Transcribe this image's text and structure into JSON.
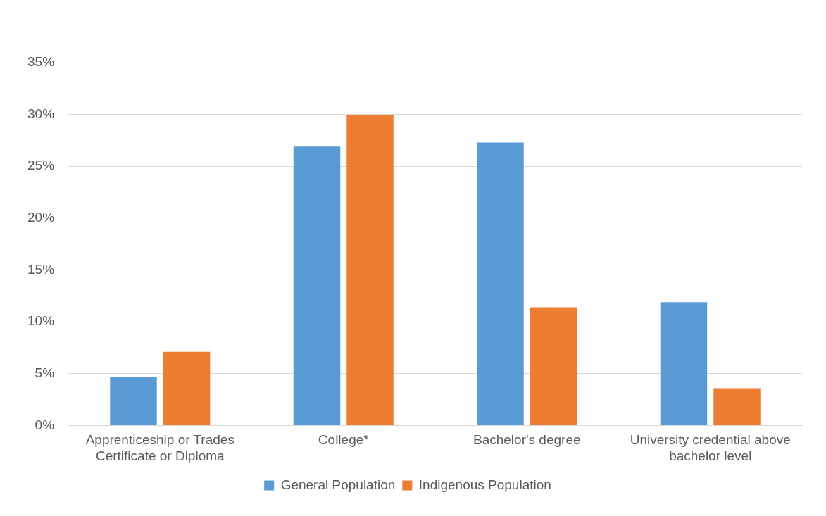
{
  "chart_data": {
    "type": "bar",
    "categories": [
      "Apprenticeship or Trades Certificate or Diploma",
      "College*",
      "Bachelor's degree",
      "University credential above bachelor level"
    ],
    "series": [
      {
        "name": "General Population",
        "color": "#5b9bd5",
        "values": [
          4.7,
          26.9,
          27.3,
          11.9
        ]
      },
      {
        "name": "Indigenous Population",
        "color": "#ed7d31",
        "values": [
          7.1,
          29.9,
          11.4,
          3.6
        ]
      }
    ],
    "ylim": [
      0,
      35
    ],
    "yticks": [
      {
        "value": 0,
        "label": "0%"
      },
      {
        "value": 5,
        "label": "5%"
      },
      {
        "value": 10,
        "label": "10%"
      },
      {
        "value": 15,
        "label": "15%"
      },
      {
        "value": 20,
        "label": "20%"
      },
      {
        "value": 25,
        "label": "25%"
      },
      {
        "value": 30,
        "label": "30%"
      },
      {
        "value": 35,
        "label": "35%"
      }
    ],
    "grid": "y",
    "legend": "bottom"
  }
}
